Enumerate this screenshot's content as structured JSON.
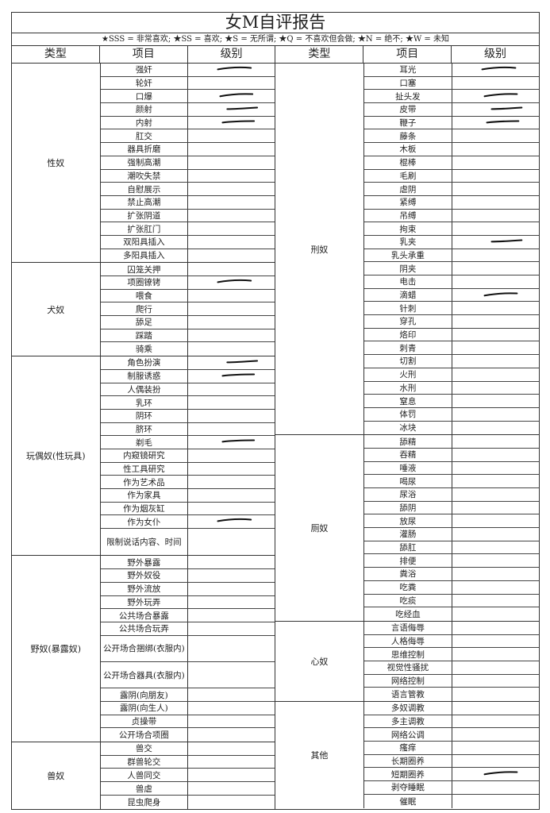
{
  "title": "女M自评报告",
  "legend": "★SSS = 非常喜欢; ★SS = 喜欢; ★S = 无所谓; ★Q = 不喜欢但会做; ★N = 绝不; ★W = 未知",
  "headers": [
    "类型",
    "项目",
    "级别",
    "类型",
    "项目",
    "级别"
  ],
  "mark_color": "#111111",
  "left": [
    {
      "type": "性奴",
      "items": [
        {
          "name": "强奸",
          "marked": true
        },
        {
          "name": "轮奸"
        },
        {
          "name": "口爆",
          "marked": true
        },
        {
          "name": "颜射",
          "marked": true
        },
        {
          "name": "内射",
          "marked": true
        },
        {
          "name": "肛交"
        },
        {
          "name": "器具折磨"
        },
        {
          "name": "强制高潮"
        },
        {
          "name": "潮吹失禁"
        },
        {
          "name": "自慰展示"
        },
        {
          "name": "禁止高潮"
        },
        {
          "name": "扩张阴道"
        },
        {
          "name": "扩张肛门"
        },
        {
          "name": "双阳具插入"
        },
        {
          "name": "多阳具插入"
        }
      ]
    },
    {
      "type": "犬奴",
      "items": [
        {
          "name": "囚笼关押"
        },
        {
          "name": "项圈镣铐",
          "marked": true
        },
        {
          "name": "喂食"
        },
        {
          "name": "爬行"
        },
        {
          "name": "舔足"
        },
        {
          "name": "踩踏"
        },
        {
          "name": "骑乘"
        }
      ]
    },
    {
      "type": "玩偶奴(性玩具)",
      "items": [
        {
          "name": "角色扮演",
          "marked": true
        },
        {
          "name": "制服诱惑",
          "marked": true
        },
        {
          "name": "人偶装扮"
        },
        {
          "name": "乳环"
        },
        {
          "name": "阴环"
        },
        {
          "name": "脐环"
        },
        {
          "name": "剃毛",
          "marked": true
        },
        {
          "name": "内窥镜研究"
        },
        {
          "name": "性工具研究"
        },
        {
          "name": "作为艺术品"
        },
        {
          "name": "作为家具"
        },
        {
          "name": "作为烟灰缸"
        },
        {
          "name": "作为女仆",
          "marked": true
        },
        {
          "name": "限制说话内容、时间",
          "double": true
        }
      ]
    },
    {
      "type": "野奴(暴露奴)",
      "items": [
        {
          "name": "野外暴露"
        },
        {
          "name": "野外奴役"
        },
        {
          "name": "野外流放"
        },
        {
          "name": "野外玩弄"
        },
        {
          "name": "公共场合暴露"
        },
        {
          "name": "公共场合玩弄"
        },
        {
          "name": "公开场合捆绑(衣服内)",
          "double": true
        },
        {
          "name": "公开场合器具(衣服内)",
          "double": true
        },
        {
          "name": "露阴(向朋友)"
        },
        {
          "name": "露阴(向生人)"
        },
        {
          "name": "贞操带"
        },
        {
          "name": "公开场合项圈"
        }
      ]
    },
    {
      "type": "兽奴",
      "items": [
        {
          "name": "兽交"
        },
        {
          "name": "群兽轮交"
        },
        {
          "name": "人兽同交"
        },
        {
          "name": "兽虐"
        },
        {
          "name": "昆虫爬身"
        }
      ]
    }
  ],
  "right": [
    {
      "type": "刑奴",
      "items": [
        {
          "name": "耳光",
          "marked": true
        },
        {
          "name": "口塞"
        },
        {
          "name": "扯头发",
          "marked": true
        },
        {
          "name": "皮带",
          "marked": true
        },
        {
          "name": "鞭子",
          "marked": true
        },
        {
          "name": "藤条"
        },
        {
          "name": "木板"
        },
        {
          "name": "棍棒"
        },
        {
          "name": "毛刷"
        },
        {
          "name": "虐阴"
        },
        {
          "name": "紧缚"
        },
        {
          "name": "吊缚"
        },
        {
          "name": "拘束"
        },
        {
          "name": "乳夹",
          "marked": true
        },
        {
          "name": "乳头承重"
        },
        {
          "name": "阴夹"
        },
        {
          "name": "电击"
        },
        {
          "name": "滴蜡",
          "marked": true
        },
        {
          "name": "针刺"
        },
        {
          "name": "穿孔"
        },
        {
          "name": "烙印"
        },
        {
          "name": "刺青"
        },
        {
          "name": "切割"
        },
        {
          "name": "火刑"
        },
        {
          "name": "水刑"
        },
        {
          "name": "窒息"
        },
        {
          "name": "体罚"
        },
        {
          "name": "冰块"
        }
      ]
    },
    {
      "type": "厕奴",
      "items": [
        {
          "name": "舔精"
        },
        {
          "name": "吞精"
        },
        {
          "name": "唾液"
        },
        {
          "name": "喝尿"
        },
        {
          "name": "尿浴"
        },
        {
          "name": "舔阴"
        },
        {
          "name": "放尿"
        },
        {
          "name": "灌肠"
        },
        {
          "name": "舔肛"
        },
        {
          "name": "排便"
        },
        {
          "name": "粪浴"
        },
        {
          "name": "吃粪"
        },
        {
          "name": "吃痰"
        },
        {
          "name": "吃经血"
        }
      ]
    },
    {
      "type": "心奴",
      "items": [
        {
          "name": "言语侮辱"
        },
        {
          "name": "人格侮辱"
        },
        {
          "name": "思维控制"
        },
        {
          "name": "视觉性骚扰"
        },
        {
          "name": "网络控制"
        },
        {
          "name": "语言管教"
        }
      ]
    },
    {
      "type": "其他",
      "items": [
        {
          "name": "多奴调教"
        },
        {
          "name": "多主调教"
        },
        {
          "name": "网络公调"
        },
        {
          "name": "瘙痒"
        },
        {
          "name": "长期圈养"
        },
        {
          "name": "短期圈养",
          "marked": true
        },
        {
          "name": "剥夺睡眠"
        },
        {
          "name": "催眠"
        }
      ]
    }
  ]
}
